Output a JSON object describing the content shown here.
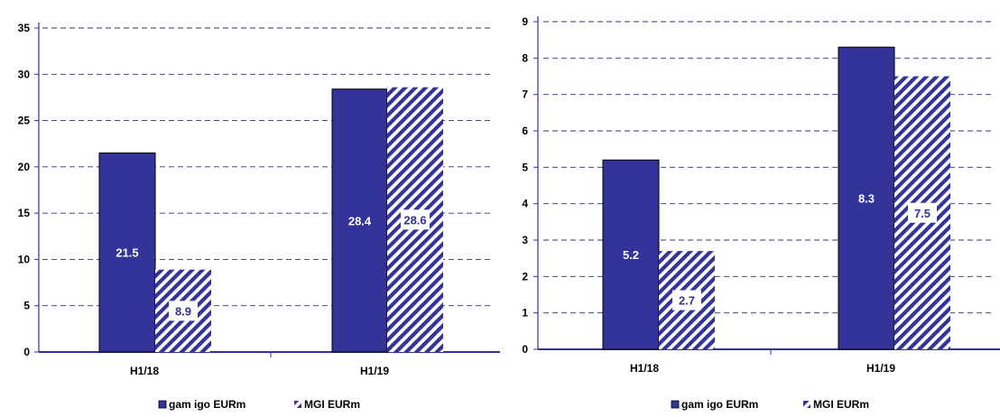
{
  "colors": {
    "series_solid": "#333399",
    "axis": "#333399",
    "grid": "#333366",
    "hatch_bg": "#ffffff",
    "data_label_on_solid": "#ffffff",
    "data_label_on_hatch": "#333399",
    "data_label_box": "#ffffff"
  },
  "chart_data": [
    {
      "type": "bar",
      "categories": [
        "H1/18",
        "H1/19"
      ],
      "series": [
        {
          "name": "gam igo EURm",
          "values": [
            21.5,
            28.4
          ],
          "labels": [
            "21.5",
            "28.4"
          ],
          "style": "solid"
        },
        {
          "name": "MGI EURm",
          "values": [
            8.9,
            28.6
          ],
          "labels": [
            "8.9",
            "28.6"
          ],
          "style": "hatched"
        }
      ],
      "ylim": [
        0,
        35
      ],
      "yticks": [
        "0",
        "5",
        "10",
        "15",
        "20",
        "25",
        "30",
        "35"
      ],
      "ytick_values": [
        0,
        5,
        10,
        15,
        20,
        25,
        30,
        35
      ],
      "grid": true,
      "legend": "bottom"
    },
    {
      "type": "bar",
      "categories": [
        "H1/18",
        "H1/19"
      ],
      "series": [
        {
          "name": "gam igo EURm",
          "values": [
            5.2,
            8.3
          ],
          "labels": [
            "5.2",
            "8.3"
          ],
          "style": "solid"
        },
        {
          "name": "MGI EURm",
          "values": [
            2.7,
            7.5
          ],
          "labels": [
            "2.7",
            "7.5"
          ],
          "style": "hatched"
        }
      ],
      "ylim": [
        0,
        9
      ],
      "yticks": [
        "0",
        "1",
        "2",
        "3",
        "4",
        "5",
        "6",
        "7",
        "8",
        "9"
      ],
      "ytick_values": [
        0,
        1,
        2,
        3,
        4,
        5,
        6,
        7,
        8,
        9
      ],
      "grid": true,
      "legend": "bottom"
    }
  ]
}
